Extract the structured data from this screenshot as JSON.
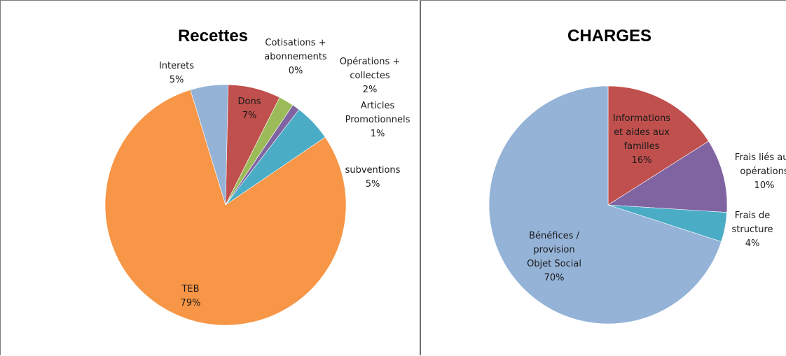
{
  "chart_data": [
    {
      "type": "pie",
      "title": "Recettes",
      "slices": [
        {
          "name": "Cotisations + abonnements",
          "value": 0,
          "label_lines": [
            "Cotisations +",
            "abonnements",
            "0%"
          ],
          "color": "#4472C4"
        },
        {
          "name": "Dons",
          "value": 7,
          "label_lines": [
            "Dons",
            "7%"
          ],
          "color": "#C0504D"
        },
        {
          "name": "Opérations + collectes",
          "value": 2,
          "label_lines": [
            "Opérations +",
            "collectes",
            "2%"
          ],
          "color": "#9BBB59"
        },
        {
          "name": "Articles Promotionnels",
          "value": 1,
          "label_lines": [
            "Articles",
            "Promotionnels",
            "1%"
          ],
          "color": "#8064A2"
        },
        {
          "name": "subventions",
          "value": 5,
          "label_lines": [
            "subventions",
            "5%"
          ],
          "color": "#4BACC6"
        },
        {
          "name": "TEB",
          "value": 79,
          "label_lines": [
            "TEB",
            "79%"
          ],
          "color": "#F79646"
        },
        {
          "name": "Interets",
          "value": 5,
          "label_lines": [
            "Interets",
            "5%"
          ],
          "color": "#95B3D7"
        }
      ]
    },
    {
      "type": "pie",
      "title": "CHARGES",
      "slices": [
        {
          "name": "Informations et aides aux familles",
          "value": 16,
          "label_lines": [
            "Informations",
            "et aides aux",
            "familles",
            "16%"
          ],
          "color": "#C0504D"
        },
        {
          "name": "Frais liés aux opérations",
          "value": 10,
          "label_lines": [
            "Frais liés aux",
            "opérations",
            "10%"
          ],
          "color": "#8064A2"
        },
        {
          "name": "Frais de structure",
          "value": 4,
          "label_lines": [
            "Frais de",
            "structure",
            "4%"
          ],
          "color": "#4BACC6"
        },
        {
          "name": "Bénéfices / provision Objet Social",
          "value": 70,
          "label_lines": [
            "Bénéfices /",
            "provision",
            "Objet Social",
            "70%"
          ],
          "color": "#95B3D7"
        }
      ]
    }
  ]
}
